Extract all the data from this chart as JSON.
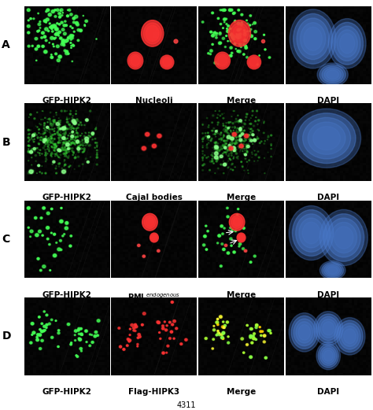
{
  "figure_width": 4.74,
  "figure_height": 5.21,
  "dpi": 100,
  "rows": [
    "A",
    "B",
    "C",
    "D"
  ],
  "col_labels": [
    [
      "GFP-HIPK2",
      "Nucleoli",
      "Merge",
      "DAPI"
    ],
    [
      "GFP-HIPK2",
      "Cajal bodies",
      "Merge",
      "DAPI"
    ],
    [
      "GFP-HIPK2",
      "PML$^{endogenous}$",
      "Merge",
      "DAPI"
    ],
    [
      "GFP-HIPK2",
      "Flag-HIPK3",
      "Merge",
      "DAPI"
    ]
  ],
  "row_label_fontsize": 10,
  "col_label_fontsize": 7.5,
  "footer_text": "4311",
  "footer_fontsize": 7,
  "figure_bg": "#ffffff"
}
